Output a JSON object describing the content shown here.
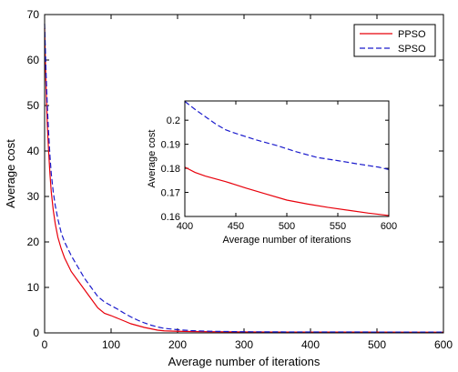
{
  "chart_data": [
    {
      "type": "line",
      "title": "",
      "xlabel": "Average number of iterations",
      "ylabel": "Average cost",
      "xlim": [
        0,
        600
      ],
      "ylim": [
        0,
        70
      ],
      "xticks": [
        0,
        100,
        200,
        300,
        400,
        500,
        600
      ],
      "yticks": [
        0,
        10,
        20,
        30,
        40,
        50,
        60,
        70
      ],
      "grid": false,
      "legend": "top-right",
      "series": [
        {
          "name": "PPSO",
          "color": "#e8000b",
          "dash": "solid",
          "x": [
            0,
            2,
            4,
            6,
            8,
            10,
            13,
            16,
            20,
            25,
            30,
            40,
            50,
            60,
            70,
            80,
            90,
            100,
            110,
            120,
            130,
            140,
            150,
            160,
            170,
            180,
            200,
            220,
            250,
            300,
            350,
            400,
            450,
            500,
            550,
            600
          ],
          "y": [
            67,
            55,
            46,
            40,
            35,
            31,
            27,
            24,
            21,
            18.5,
            16.5,
            13.5,
            11.5,
            9.5,
            7.5,
            5.5,
            4.3,
            3.8,
            3.2,
            2.6,
            2.0,
            1.6,
            1.2,
            0.9,
            0.6,
            0.45,
            0.35,
            0.3,
            0.25,
            0.2,
            0.18,
            0.18,
            0.17,
            0.17,
            0.16,
            0.16
          ]
        },
        {
          "name": "SPSO",
          "color": "#1a1acc",
          "dash": "dashed",
          "x": [
            0,
            2,
            4,
            6,
            8,
            10,
            13,
            16,
            20,
            25,
            30,
            40,
            50,
            60,
            70,
            80,
            90,
            100,
            110,
            120,
            130,
            140,
            150,
            160,
            170,
            180,
            200,
            220,
            250,
            300,
            350,
            400,
            450,
            500,
            550,
            600
          ],
          "y": [
            68,
            58,
            50,
            44,
            39,
            35,
            31,
            28,
            25,
            22,
            20,
            17,
            14.5,
            12,
            10,
            8,
            6.8,
            6.0,
            5.2,
            4.3,
            3.5,
            2.8,
            2.2,
            1.7,
            1.3,
            1.0,
            0.7,
            0.5,
            0.35,
            0.25,
            0.22,
            0.21,
            0.2,
            0.19,
            0.19,
            0.18
          ]
        }
      ]
    },
    {
      "type": "line",
      "title": "",
      "xlabel": "Average number of iterations",
      "ylabel": "Average cost",
      "xlim": [
        400,
        600
      ],
      "ylim": [
        0.16,
        0.208
      ],
      "xticks": [
        400,
        450,
        500,
        550,
        600
      ],
      "yticks": [
        0.16,
        0.17,
        0.18,
        0.19,
        0.2
      ],
      "grid": false,
      "series": [
        {
          "name": "PPSO",
          "color": "#e8000b",
          "dash": "solid",
          "x": [
            400,
            410,
            420,
            440,
            460,
            480,
            500,
            520,
            540,
            560,
            580,
            600
          ],
          "y": [
            0.1805,
            0.1783,
            0.1768,
            0.1745,
            0.1718,
            0.1693,
            0.1668,
            0.1652,
            0.1638,
            0.1626,
            0.1614,
            0.1604
          ]
        },
        {
          "name": "SPSO",
          "color": "#1a1acc",
          "dash": "dashed",
          "x": [
            400,
            410,
            420,
            430,
            440,
            450,
            470,
            490,
            510,
            530,
            550,
            570,
            590,
            600
          ],
          "y": [
            0.2078,
            0.2045,
            0.2015,
            0.1985,
            0.196,
            0.1945,
            0.1918,
            0.1895,
            0.1868,
            0.1845,
            0.1832,
            0.1818,
            0.1805,
            0.1795
          ]
        }
      ]
    }
  ]
}
